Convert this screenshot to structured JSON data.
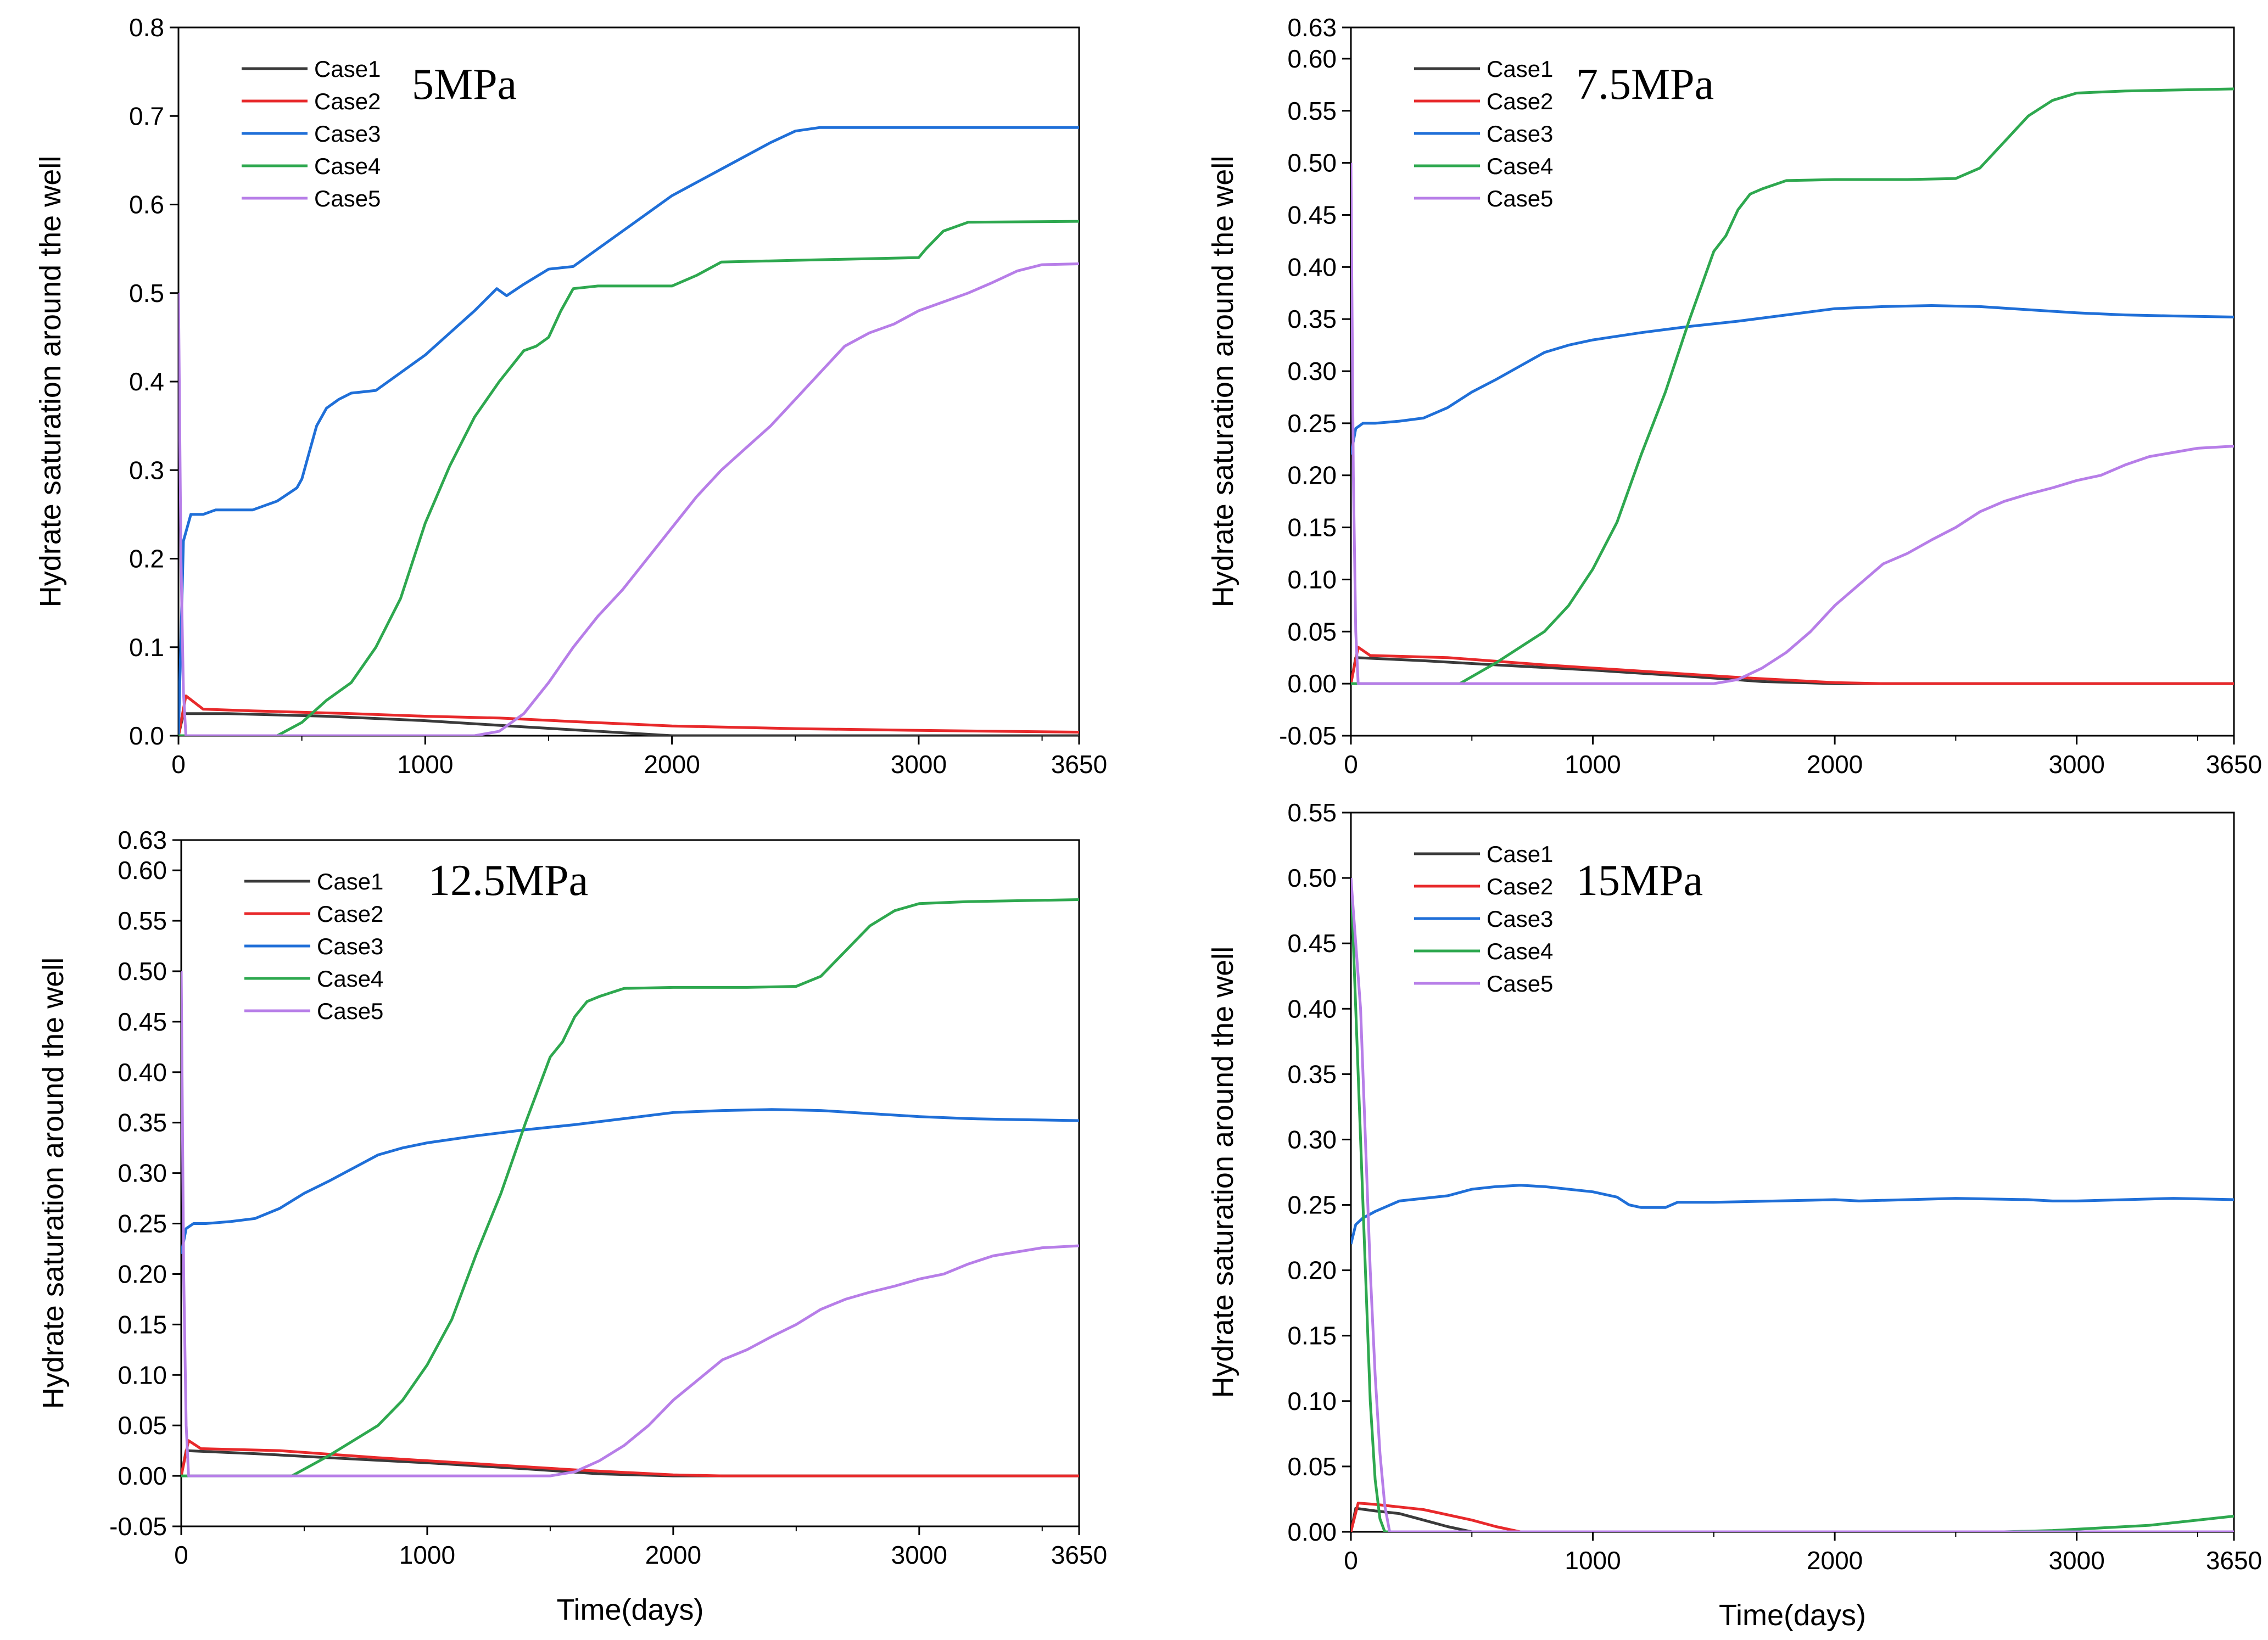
{
  "figure": {
    "colors": {
      "Case1": "#3a3a3a",
      "Case2": "#e8292b",
      "Case3": "#1f6fd8",
      "Case4": "#2ea84f",
      "Case5": "#b77ee8"
    }
  },
  "chart_data": [
    {
      "type": "line",
      "title": "5MPa",
      "xlabel": "",
      "ylabel": "Hydrate saturation around the well",
      "xlim": [
        0,
        3650
      ],
      "ylim": [
        0,
        0.8
      ],
      "xticks": [
        "0",
        "1000",
        "2000",
        "3000",
        "3650"
      ],
      "yticks": [
        "0.0",
        "0.1",
        "0.2",
        "0.3",
        "0.4",
        "0.5",
        "0.6",
        "0.7",
        "0.8"
      ],
      "legend": [
        "Case1",
        "Case2",
        "Case3",
        "Case4",
        "Case5"
      ],
      "legend_position": "top-left",
      "series": [
        {
          "name": "Case1",
          "x": [
            0,
            20,
            200,
            600,
            1000,
            1400,
            1700,
            2000,
            3650
          ],
          "y": [
            0,
            0.025,
            0.025,
            0.022,
            0.017,
            0.01,
            0.005,
            0,
            0
          ]
        },
        {
          "name": "Case2",
          "x": [
            0,
            30,
            100,
            300,
            700,
            1000,
            1300,
            1600,
            2000,
            2500,
            3000,
            3650
          ],
          "y": [
            0,
            0.045,
            0.03,
            0.028,
            0.025,
            0.022,
            0.02,
            0.016,
            0.011,
            0.008,
            0.006,
            0.004
          ]
        },
        {
          "name": "Case3",
          "x": [
            0,
            20,
            50,
            100,
            150,
            300,
            400,
            480,
            500,
            530,
            560,
            600,
            650,
            700,
            800,
            900,
            1000,
            1100,
            1200,
            1290,
            1330,
            1400,
            1500,
            1600,
            1700,
            1800,
            2000,
            2200,
            2400,
            2500,
            2600,
            3650
          ],
          "y": [
            0,
            0.22,
            0.25,
            0.25,
            0.255,
            0.255,
            0.265,
            0.28,
            0.29,
            0.32,
            0.35,
            0.37,
            0.38,
            0.387,
            0.39,
            0.41,
            0.43,
            0.455,
            0.48,
            0.505,
            0.497,
            0.51,
            0.527,
            0.53,
            0.55,
            0.57,
            0.61,
            0.64,
            0.67,
            0.683,
            0.687,
            0.687
          ]
        },
        {
          "name": "Case4",
          "x": [
            0,
            400,
            500,
            600,
            700,
            800,
            900,
            1000,
            1100,
            1200,
            1300,
            1400,
            1450,
            1500,
            1550,
            1600,
            1700,
            2000,
            2100,
            2200,
            2500,
            3000,
            3030,
            3100,
            3200,
            3650
          ],
          "y": [
            0,
            0,
            0.015,
            0.04,
            0.06,
            0.1,
            0.155,
            0.24,
            0.305,
            0.36,
            0.4,
            0.435,
            0.44,
            0.45,
            0.48,
            0.505,
            0.508,
            0.508,
            0.52,
            0.535,
            0.537,
            0.54,
            0.55,
            0.57,
            0.58,
            0.581
          ]
        },
        {
          "name": "Case5",
          "x": [
            0,
            10,
            20,
            30,
            200,
            1200,
            1300,
            1400,
            1500,
            1600,
            1700,
            1800,
            1900,
            2000,
            2100,
            2200,
            2300,
            2400,
            2500,
            2600,
            2700,
            2800,
            2900,
            3000,
            3100,
            3200,
            3300,
            3400,
            3500,
            3650
          ],
          "y": [
            0.5,
            0.2,
            0.05,
            0,
            0,
            0,
            0.005,
            0.025,
            0.06,
            0.1,
            0.135,
            0.165,
            0.2,
            0.235,
            0.27,
            0.3,
            0.325,
            0.35,
            0.38,
            0.41,
            0.44,
            0.455,
            0.465,
            0.48,
            0.49,
            0.5,
            0.512,
            0.525,
            0.532,
            0.533
          ]
        }
      ]
    },
    {
      "type": "line",
      "title": "7.5MPa",
      "xlabel": "",
      "ylabel": "Hydrate saturation around the well",
      "xlim": [
        0,
        3650
      ],
      "ylim": [
        -0.05,
        0.63
      ],
      "xticks": [
        "0",
        "1000",
        "2000",
        "3000",
        "3650"
      ],
      "yticks": [
        "-0.05",
        "0.00",
        "0.05",
        "0.10",
        "0.15",
        "0.20",
        "0.25",
        "0.30",
        "0.35",
        "0.40",
        "0.45",
        "0.50",
        "0.55",
        "0.60",
        "0.63"
      ],
      "legend": [
        "Case1",
        "Case2",
        "Case3",
        "Case4",
        "Case5"
      ],
      "legend_position": "top-left",
      "series": [
        {
          "name": "Case1",
          "x": [
            0,
            20,
            300,
            600,
            1000,
            1400,
            1700,
            2000,
            3650
          ],
          "y": [
            0,
            0.025,
            0.022,
            0.018,
            0.013,
            0.007,
            0.002,
            0,
            0
          ]
        },
        {
          "name": "Case2",
          "x": [
            0,
            30,
            80,
            400,
            800,
            1200,
            1600,
            2000,
            2200,
            3650
          ],
          "y": [
            0,
            0.035,
            0.027,
            0.025,
            0.018,
            0.012,
            0.006,
            0.001,
            0,
            0
          ]
        },
        {
          "name": "Case3",
          "x": [
            0,
            20,
            50,
            100,
            200,
            300,
            400,
            500,
            600,
            700,
            800,
            900,
            1000,
            1200,
            1400,
            1600,
            1800,
            2000,
            2200,
            2400,
            2600,
            2800,
            3000,
            3200,
            3400,
            3650
          ],
          "y": [
            0.22,
            0.245,
            0.25,
            0.25,
            0.252,
            0.255,
            0.265,
            0.28,
            0.292,
            0.305,
            0.318,
            0.325,
            0.33,
            0.337,
            0.343,
            0.348,
            0.354,
            0.36,
            0.362,
            0.363,
            0.362,
            0.359,
            0.356,
            0.354,
            0.353,
            0.352
          ]
        },
        {
          "name": "Case4",
          "x": [
            0,
            450,
            600,
            800,
            900,
            1000,
            1100,
            1200,
            1300,
            1400,
            1500,
            1550,
            1600,
            1650,
            1700,
            1800,
            2000,
            2300,
            2500,
            2600,
            2700,
            2800,
            2900,
            3000,
            3200,
            3650
          ],
          "y": [
            0,
            0,
            0.02,
            0.05,
            0.075,
            0.11,
            0.155,
            0.22,
            0.28,
            0.35,
            0.415,
            0.43,
            0.455,
            0.47,
            0.475,
            0.483,
            0.484,
            0.484,
            0.485,
            0.495,
            0.52,
            0.545,
            0.56,
            0.567,
            0.569,
            0.571
          ]
        },
        {
          "name": "Case5",
          "x": [
            0,
            10,
            20,
            30,
            200,
            1500,
            1600,
            1700,
            1800,
            1900,
            2000,
            2100,
            2200,
            2300,
            2400,
            2500,
            2600,
            2700,
            2800,
            2900,
            3000,
            3100,
            3200,
            3300,
            3400,
            3500,
            3650
          ],
          "y": [
            0.5,
            0.2,
            0.05,
            0,
            0,
            0,
            0.004,
            0.015,
            0.03,
            0.05,
            0.075,
            0.095,
            0.115,
            0.125,
            0.138,
            0.15,
            0.165,
            0.175,
            0.182,
            0.188,
            0.195,
            0.2,
            0.21,
            0.218,
            0.222,
            0.226,
            0.228
          ]
        }
      ]
    },
    {
      "type": "line",
      "title": "12.5MPa",
      "xlabel": "Time(days)",
      "ylabel": "Hydrate saturation around the well",
      "xlim": [
        0,
        3650
      ],
      "ylim": [
        -0.05,
        0.63
      ],
      "xticks": [
        "0",
        "1000",
        "2000",
        "3000",
        "3650"
      ],
      "yticks": [
        "-0.05",
        "0.00",
        "0.05",
        "0.10",
        "0.15",
        "0.20",
        "0.25",
        "0.30",
        "0.35",
        "0.40",
        "0.45",
        "0.50",
        "0.55",
        "0.60",
        "0.63"
      ],
      "legend": [
        "Case1",
        "Case2",
        "Case3",
        "Case4",
        "Case5"
      ],
      "legend_position": "top-left",
      "series": [
        {
          "name": "Case1",
          "x": [
            0,
            20,
            300,
            600,
            1000,
            1400,
            1700,
            2000,
            3650
          ],
          "y": [
            0,
            0.025,
            0.022,
            0.018,
            0.013,
            0.007,
            0.002,
            0,
            0
          ]
        },
        {
          "name": "Case2",
          "x": [
            0,
            30,
            80,
            400,
            800,
            1200,
            1600,
            2000,
            2200,
            3650
          ],
          "y": [
            0,
            0.035,
            0.027,
            0.025,
            0.018,
            0.012,
            0.006,
            0.001,
            0,
            0
          ]
        },
        {
          "name": "Case3",
          "x": [
            0,
            20,
            50,
            100,
            200,
            300,
            400,
            500,
            600,
            700,
            800,
            900,
            1000,
            1200,
            1400,
            1600,
            1800,
            2000,
            2200,
            2400,
            2600,
            2800,
            3000,
            3200,
            3400,
            3650
          ],
          "y": [
            0.22,
            0.245,
            0.25,
            0.25,
            0.252,
            0.255,
            0.265,
            0.28,
            0.292,
            0.305,
            0.318,
            0.325,
            0.33,
            0.337,
            0.343,
            0.348,
            0.354,
            0.36,
            0.362,
            0.363,
            0.362,
            0.359,
            0.356,
            0.354,
            0.353,
            0.352
          ]
        },
        {
          "name": "Case4",
          "x": [
            0,
            450,
            600,
            800,
            900,
            1000,
            1100,
            1200,
            1300,
            1400,
            1500,
            1550,
            1600,
            1650,
            1700,
            1800,
            2000,
            2300,
            2500,
            2600,
            2700,
            2800,
            2900,
            3000,
            3200,
            3650
          ],
          "y": [
            0,
            0,
            0.02,
            0.05,
            0.075,
            0.11,
            0.155,
            0.22,
            0.28,
            0.35,
            0.415,
            0.43,
            0.455,
            0.47,
            0.475,
            0.483,
            0.484,
            0.484,
            0.485,
            0.495,
            0.52,
            0.545,
            0.56,
            0.567,
            0.569,
            0.571
          ]
        },
        {
          "name": "Case5",
          "x": [
            0,
            10,
            20,
            30,
            200,
            1500,
            1600,
            1700,
            1800,
            1900,
            2000,
            2100,
            2200,
            2300,
            2400,
            2500,
            2600,
            2700,
            2800,
            2900,
            3000,
            3100,
            3200,
            3300,
            3400,
            3500,
            3650
          ],
          "y": [
            0.5,
            0.2,
            0.05,
            0,
            0,
            0,
            0.004,
            0.015,
            0.03,
            0.05,
            0.075,
            0.095,
            0.115,
            0.125,
            0.138,
            0.15,
            0.165,
            0.175,
            0.182,
            0.188,
            0.195,
            0.2,
            0.21,
            0.218,
            0.222,
            0.226,
            0.228
          ]
        }
      ]
    },
    {
      "type": "line",
      "title": "15MPa",
      "xlabel": "Time(days)",
      "ylabel": "Hydrate saturation around the well",
      "xlim": [
        0,
        3650
      ],
      "ylim": [
        0,
        0.55
      ],
      "xticks": [
        "0",
        "1000",
        "2000",
        "3000",
        "3650"
      ],
      "yticks": [
        "0.00",
        "0.05",
        "0.10",
        "0.15",
        "0.20",
        "0.25",
        "0.30",
        "0.35",
        "0.40",
        "0.45",
        "0.50",
        "0.55"
      ],
      "legend": [
        "Case1",
        "Case2",
        "Case3",
        "Case4",
        "Case5"
      ],
      "legend_position": "top-left",
      "series": [
        {
          "name": "Case1",
          "x": [
            0,
            20,
            100,
            200,
            300,
            400,
            500,
            3650
          ],
          "y": [
            0,
            0.018,
            0.016,
            0.014,
            0.009,
            0.004,
            0,
            0
          ]
        },
        {
          "name": "Case2",
          "x": [
            0,
            30,
            100,
            200,
            300,
            400,
            500,
            600,
            700,
            3650
          ],
          "y": [
            0,
            0.022,
            0.021,
            0.019,
            0.017,
            0.013,
            0.009,
            0.004,
            0,
            0
          ]
        },
        {
          "name": "Case3",
          "x": [
            0,
            20,
            50,
            100,
            200,
            300,
            400,
            500,
            600,
            700,
            800,
            900,
            1000,
            1100,
            1150,
            1200,
            1300,
            1350,
            1500,
            2000,
            2100,
            2500,
            2800,
            2900,
            3000,
            3200,
            3400,
            3650
          ],
          "y": [
            0.22,
            0.235,
            0.24,
            0.245,
            0.253,
            0.255,
            0.257,
            0.262,
            0.264,
            0.265,
            0.264,
            0.262,
            0.26,
            0.256,
            0.25,
            0.248,
            0.248,
            0.252,
            0.252,
            0.254,
            0.253,
            0.255,
            0.254,
            0.253,
            0.253,
            0.254,
            0.255,
            0.254
          ]
        },
        {
          "name": "Case4",
          "x": [
            0,
            20,
            40,
            60,
            80,
            100,
            120,
            140,
            2700,
            2900,
            3100,
            3300,
            3500,
            3650
          ],
          "y": [
            0.5,
            0.4,
            0.3,
            0.2,
            0.1,
            0.04,
            0.01,
            0,
            0,
            0.001,
            0.003,
            0.005,
            0.009,
            0.012
          ]
        },
        {
          "name": "Case5",
          "x": [
            0,
            20,
            40,
            60,
            80,
            100,
            120,
            140,
            160,
            3650
          ],
          "y": [
            0.5,
            0.45,
            0.4,
            0.3,
            0.2,
            0.12,
            0.06,
            0.02,
            0,
            0
          ]
        }
      ]
    }
  ]
}
